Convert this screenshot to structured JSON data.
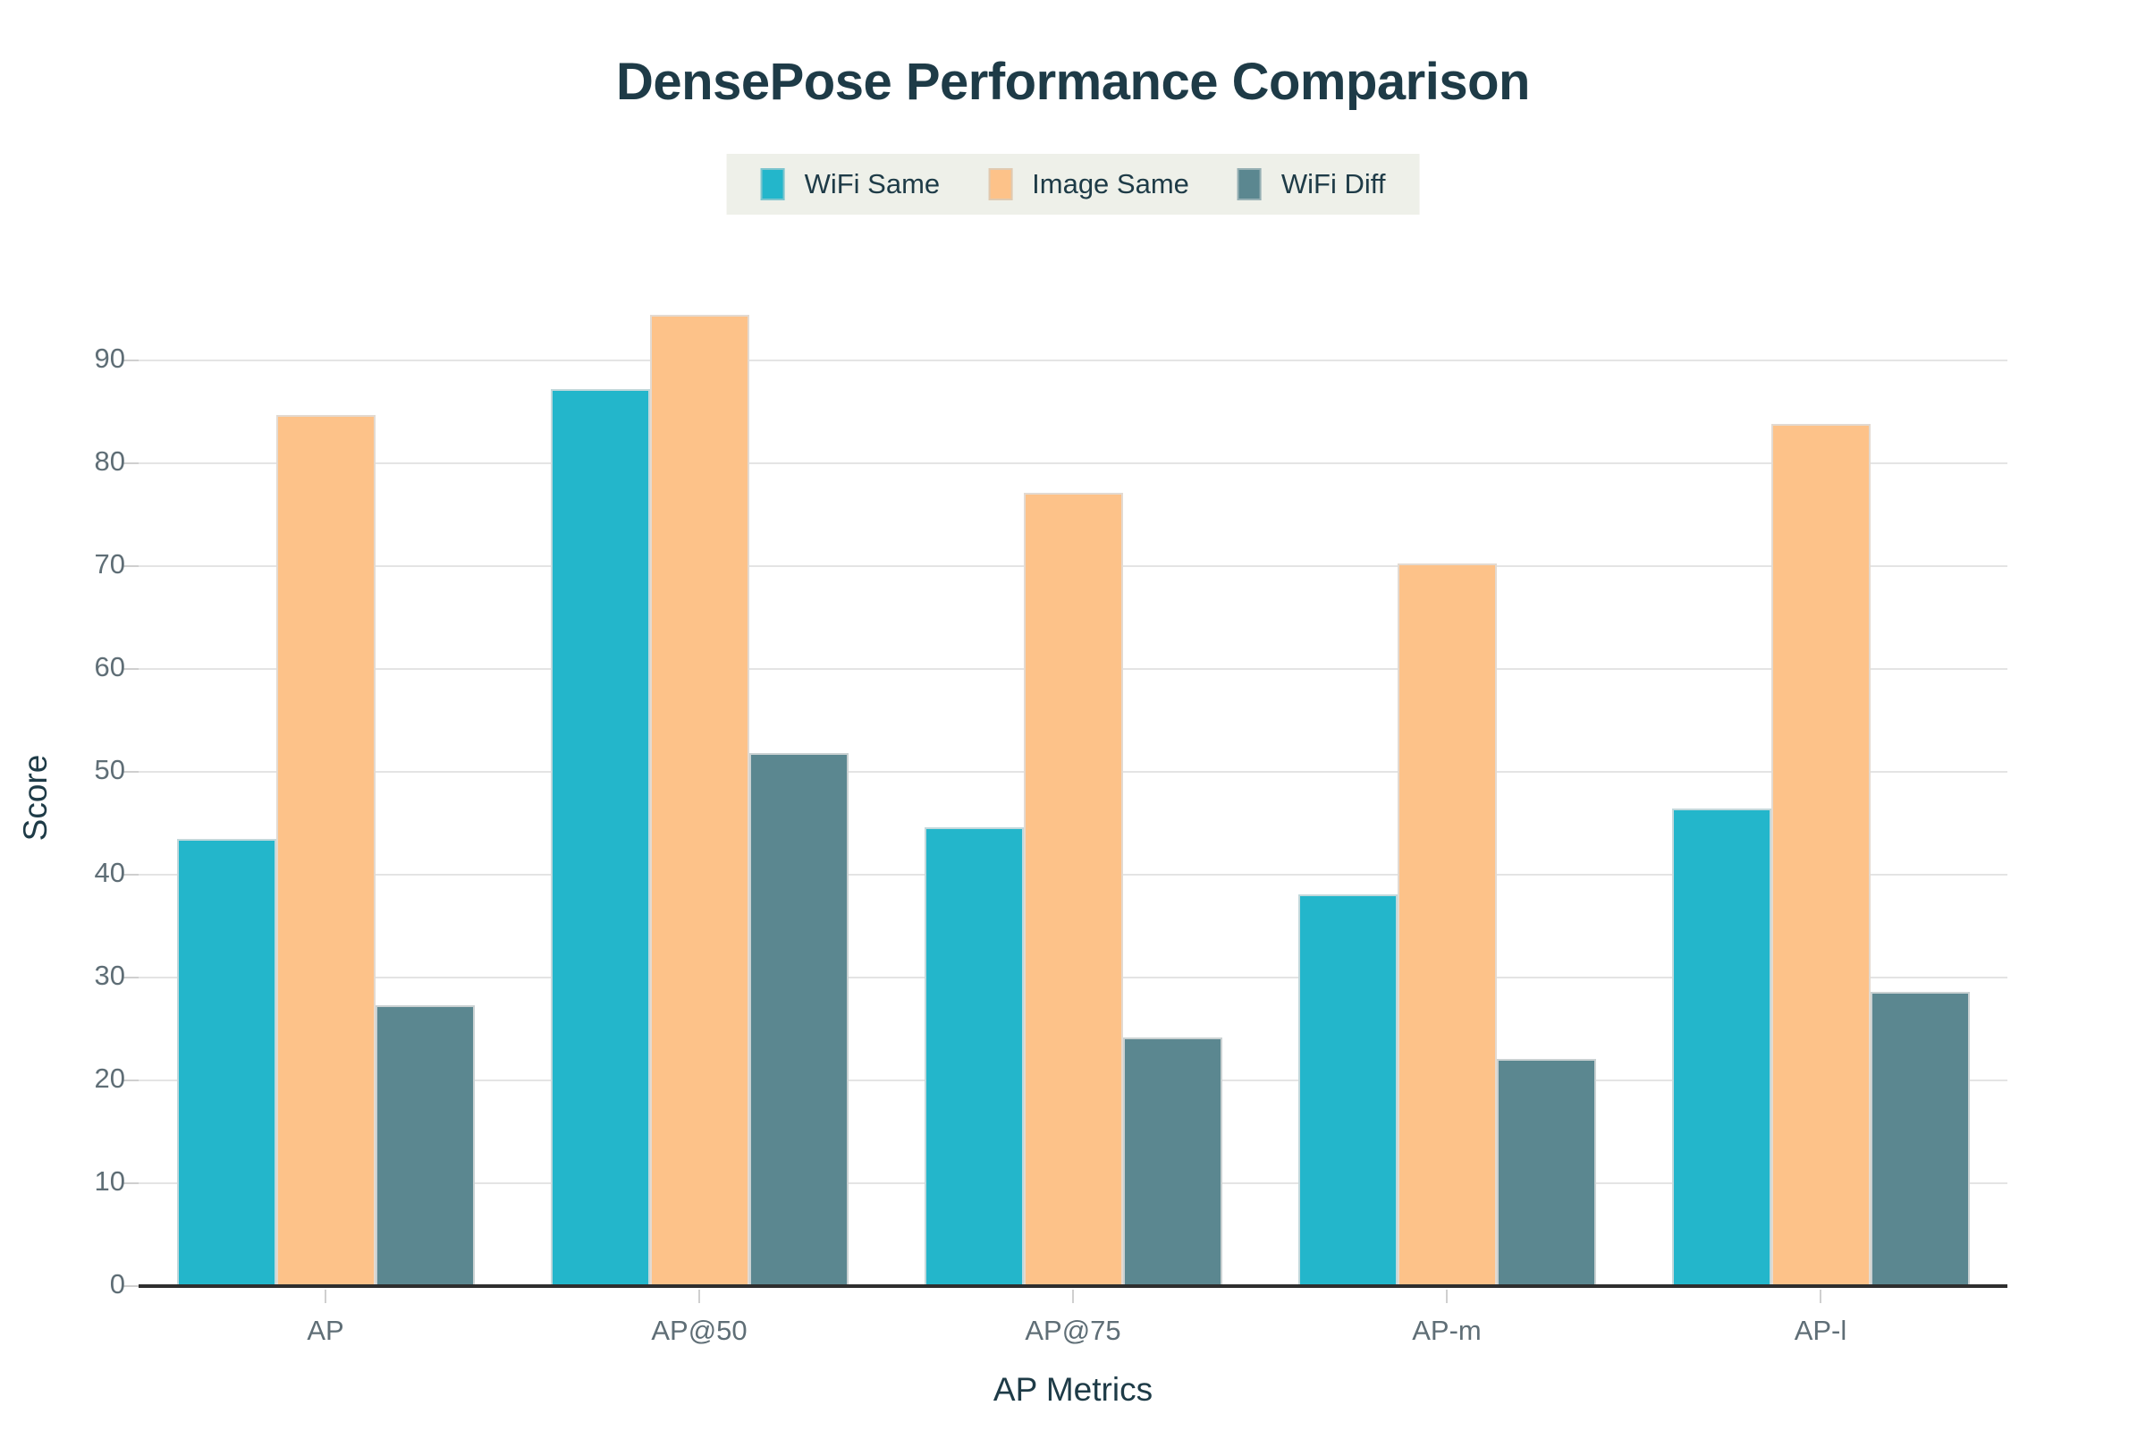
{
  "chart_data": {
    "type": "bar",
    "title": "DensePose Performance Comparison",
    "xlabel": "AP Metrics",
    "ylabel": "Score",
    "categories": [
      "AP",
      "AP@50",
      "AP@75",
      "AP-m",
      "AP-l"
    ],
    "series": [
      {
        "name": "WiFi Same",
        "color": "#23b6cb",
        "values": [
          43.5,
          87.2,
          44.6,
          38.1,
          46.4
        ]
      },
      {
        "name": "Image Same",
        "color": "#fdc289",
        "values": [
          84.7,
          94.4,
          77.1,
          70.3,
          83.8
        ]
      },
      {
        "name": "WiFi Diff",
        "color": "#5b8790",
        "values": [
          27.3,
          51.8,
          24.2,
          22.1,
          28.6
        ]
      }
    ],
    "ylim": [
      0,
      95
    ],
    "yticks": [
      0,
      10,
      20,
      30,
      40,
      50,
      60,
      70,
      80,
      90
    ],
    "grid": true,
    "legend_position": "top-center",
    "colors": {
      "title_text": "#1e3b47",
      "tick_text": "#5f6e76",
      "gridline": "#e4e4e4",
      "axis_line": "#2e2e2e",
      "legend_background": "#eef0e9",
      "background": "#ffffff"
    }
  }
}
